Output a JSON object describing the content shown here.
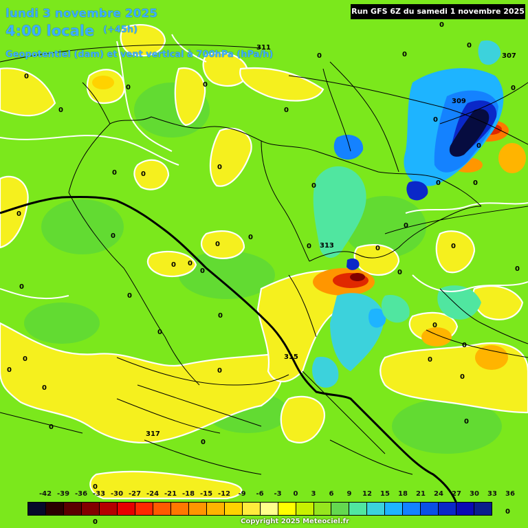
{
  "header": {
    "date": "lundi 3 novembre 2025",
    "time": "4:00 locale",
    "lead": "(+45h)",
    "parameter": "Geopotentiel (dam) et vent vertical à 700hPa (hPa/h)",
    "run": "Run GFS 6Z du samedi 1 novembre 2025"
  },
  "legend": {
    "ticks": [
      "-42",
      "-39",
      "-36",
      "-33",
      "-30",
      "-27",
      "-24",
      "-21",
      "-18",
      "-15",
      "-12",
      "-9",
      "-6",
      "-3",
      "0",
      "3",
      "6",
      "9",
      "12",
      "15",
      "18",
      "21",
      "24",
      "27",
      "30",
      "33",
      "36"
    ],
    "colors": [
      "#050a2a",
      "#2a0000",
      "#5a0000",
      "#820000",
      "#b40000",
      "#e60000",
      "#ff2800",
      "#ff5a00",
      "#ff7800",
      "#ff9600",
      "#ffb400",
      "#ffd200",
      "#ffeb3c",
      "#ffff8c",
      "#ffff00",
      "#c8f000",
      "#96e61e",
      "#64d850",
      "#50e6a0",
      "#3cd2dc",
      "#1eb4ff",
      "#1482ff",
      "#0a50e6",
      "#0a28c8",
      "#0a0ab4",
      "#0a1e8c"
    ]
  },
  "geopotential_labels": [
    "311",
    "309",
    "307",
    "313",
    "315",
    "317"
  ],
  "zero_labels": [
    "0"
  ],
  "colors": {
    "background": "#7be81c",
    "header_text": "#3cb0ff",
    "contour": "#ffffff",
    "yellow_zone": "#f5f01e",
    "blue_zone": "#1e8cff",
    "dark_blue_zone": "#060c40",
    "red_zone": "#e02800"
  },
  "copyright": "Copyright 2025 Meteociel.fr"
}
